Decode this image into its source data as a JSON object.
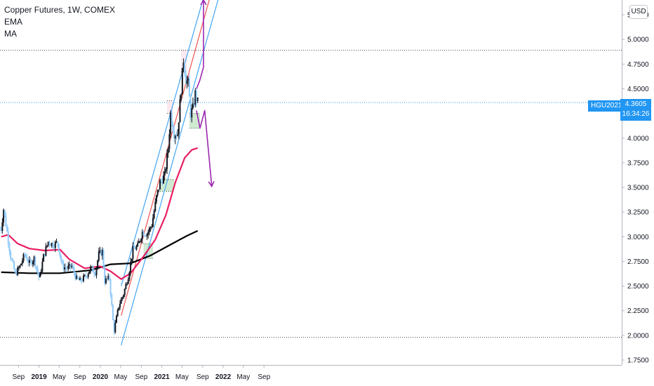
{
  "legend": {
    "title": "Copper Futures, 1W, COMEX",
    "indicator_1": "EMA",
    "indicator_2": "MA"
  },
  "currency_button": "USD",
  "symbol_badge": "HGU2021",
  "last_price": "4.3605",
  "countdown": "16:34:26",
  "colors": {
    "up_body": "#131722",
    "down_body": "#90caf9",
    "ema": "#e91e63",
    "ma": "#000000",
    "channel_outer": "#42a5f5",
    "channel_mid": "#ef5350",
    "arrows": "#9c27b0",
    "support_zone": "#c8e6c9",
    "resistance_zone": "#fce4ec",
    "badge": "#2196f3"
  },
  "chart_data": {
    "type": "candlestick",
    "y_axis": {
      "range": [
        1.7,
        5.4
      ],
      "ticks": [
        "1.7500",
        "2.0000",
        "2.2500",
        "2.5000",
        "2.7500",
        "3.0000",
        "3.2500",
        "3.5000",
        "3.7500",
        "4.0000",
        "4.2500",
        "4.5000",
        "4.7500",
        "5.0000",
        "5.2500"
      ]
    },
    "x_axis": {
      "ticks": [
        {
          "label": "Sep",
          "date": "2018-09"
        },
        {
          "label": "2019",
          "date": "2019-01"
        },
        {
          "label": "May",
          "date": "2019-05"
        },
        {
          "label": "Sep",
          "date": "2019-09"
        },
        {
          "label": "2020",
          "date": "2020-01"
        },
        {
          "label": "May",
          "date": "2020-05"
        },
        {
          "label": "Sep",
          "date": "2020-09"
        },
        {
          "label": "2021",
          "date": "2021-01"
        },
        {
          "label": "May",
          "date": "2021-05"
        },
        {
          "label": "Sep",
          "date": "2021-09"
        },
        {
          "label": "2022",
          "date": "2022-01"
        },
        {
          "label": "May",
          "date": "2022-05"
        },
        {
          "label": "Sep",
          "date": "2022-09"
        }
      ]
    },
    "price_path": [
      [
        "2018-05-21",
        3.08
      ],
      [
        "2018-06-04",
        3.28
      ],
      [
        "2018-06-25",
        3.05
      ],
      [
        "2018-07-16",
        2.8
      ],
      [
        "2018-08-13",
        2.62
      ],
      [
        "2018-09-10",
        2.7
      ],
      [
        "2018-10-08",
        2.82
      ],
      [
        "2018-11-05",
        2.73
      ],
      [
        "2018-12-03",
        2.78
      ],
      [
        "2019-01-03",
        2.57
      ],
      [
        "2019-01-28",
        2.8
      ],
      [
        "2019-02-25",
        2.95
      ],
      [
        "2019-03-25",
        2.92
      ],
      [
        "2019-04-22",
        2.94
      ],
      [
        "2019-05-20",
        2.7
      ],
      [
        "2019-06-17",
        2.68
      ],
      [
        "2019-07-15",
        2.7
      ],
      [
        "2019-08-12",
        2.57
      ],
      [
        "2019-09-03",
        2.55
      ],
      [
        "2019-10-07",
        2.6
      ],
      [
        "2019-11-04",
        2.68
      ],
      [
        "2019-12-02",
        2.64
      ],
      [
        "2019-12-23",
        2.82
      ],
      [
        "2020-01-13",
        2.85
      ],
      [
        "2020-01-27",
        2.55
      ],
      [
        "2020-02-24",
        2.58
      ],
      [
        "2020-03-16",
        2.15
      ],
      [
        "2020-03-23",
        2.05
      ],
      [
        "2020-04-20",
        2.3
      ],
      [
        "2020-05-18",
        2.42
      ],
      [
        "2020-06-15",
        2.6
      ],
      [
        "2020-07-13",
        2.87
      ],
      [
        "2020-08-10",
        2.9
      ],
      [
        "2020-09-07",
        3.05
      ],
      [
        "2020-10-05",
        3.03
      ],
      [
        "2020-11-02",
        3.12
      ],
      [
        "2020-11-30",
        3.4
      ],
      [
        "2020-12-21",
        3.55
      ],
      [
        "2021-01-18",
        3.62
      ],
      [
        "2021-02-08",
        3.9
      ],
      [
        "2021-02-22",
        4.25
      ],
      [
        "2021-03-15",
        4.05
      ],
      [
        "2021-04-05",
        4.05
      ],
      [
        "2021-04-26",
        4.5
      ],
      [
        "2021-05-10",
        4.8
      ],
      [
        "2021-05-24",
        4.6
      ],
      [
        "2021-06-07",
        4.55
      ],
      [
        "2021-06-21",
        4.25
      ],
      [
        "2021-07-05",
        4.3
      ],
      [
        "2021-07-19",
        4.45
      ],
      [
        "2021-08-02",
        4.36
      ]
    ],
    "ema": [
      [
        "2018-05-21",
        3.0
      ],
      [
        "2018-07-02",
        3.02
      ],
      [
        "2018-08-27",
        2.93
      ],
      [
        "2018-11-05",
        2.88
      ],
      [
        "2019-02-04",
        2.86
      ],
      [
        "2019-05-06",
        2.87
      ],
      [
        "2019-07-01",
        2.77
      ],
      [
        "2019-09-30",
        2.68
      ],
      [
        "2019-12-30",
        2.7
      ],
      [
        "2020-03-02",
        2.65
      ],
      [
        "2020-05-04",
        2.57
      ],
      [
        "2020-06-29",
        2.63
      ],
      [
        "2020-09-14",
        2.8
      ],
      [
        "2020-11-23",
        2.97
      ],
      [
        "2021-01-25",
        3.22
      ],
      [
        "2021-03-22",
        3.55
      ],
      [
        "2021-05-17",
        3.8
      ],
      [
        "2021-06-28",
        3.88
      ],
      [
        "2021-08-02",
        3.9
      ]
    ],
    "ma": [
      [
        "2018-05-21",
        2.64
      ],
      [
        "2018-11-05",
        2.63
      ],
      [
        "2019-05-06",
        2.63
      ],
      [
        "2019-11-04",
        2.66
      ],
      [
        "2020-03-02",
        2.72
      ],
      [
        "2020-06-29",
        2.73
      ],
      [
        "2020-10-26",
        2.81
      ],
      [
        "2021-02-22",
        2.92
      ],
      [
        "2021-05-31",
        3.01
      ],
      [
        "2021-08-02",
        3.06
      ]
    ],
    "channel": {
      "lower": [
        [
          "2020-05-04",
          1.9
        ],
        [
          "2022-01-03",
          5.6
        ]
      ],
      "middle": [
        [
          "2020-05-04",
          2.2
        ],
        [
          "2021-12-06",
          5.75
        ]
      ],
      "upper": [
        [
          "2020-05-04",
          2.5
        ],
        [
          "2021-11-08",
          5.8
        ]
      ]
    },
    "horizontal_levels": [
      4.89,
      1.98
    ],
    "last_price_line": 4.3605,
    "support_zones": [
      {
        "start": "2020-09-14",
        "end": "2020-11-09",
        "low": 2.78,
        "high": 2.93
      },
      {
        "start": "2020-12-21",
        "end": "2021-03-15",
        "low": 3.46,
        "high": 3.58
      },
      {
        "start": "2021-06-14",
        "end": "2021-08-16",
        "low": 4.1,
        "high": 4.25
      }
    ],
    "resistance_zones": [
      {
        "start": "2021-02-01",
        "end": "2021-03-08",
        "low": 4.25,
        "high": 4.38
      },
      {
        "start": "2021-04-26",
        "end": "2021-05-31",
        "low": 4.67,
        "high": 4.89
      }
    ],
    "forecast_arrows": [
      [
        [
          "2021-07-26",
          4.5
        ],
        [
          "2021-08-16",
          4.59
        ],
        [
          "2021-09-06",
          4.72
        ],
        [
          "2021-09-06",
          5.4
        ]
      ],
      [
        [
          "2021-07-26",
          4.28
        ],
        [
          "2021-08-16",
          4.1
        ],
        [
          "2021-09-13",
          4.28
        ],
        [
          "2021-10-25",
          3.51
        ]
      ]
    ]
  }
}
